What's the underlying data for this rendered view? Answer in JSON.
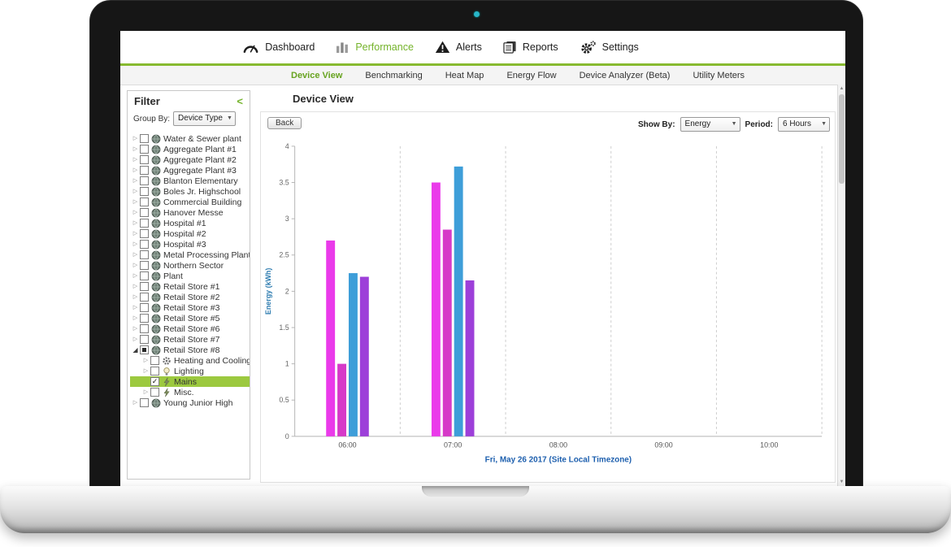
{
  "nav": {
    "accent": "#74b32a",
    "items": [
      {
        "label": "Dashboard",
        "icon": "gauge-icon",
        "active": false
      },
      {
        "label": "Performance",
        "icon": "barchart-icon",
        "active": true
      },
      {
        "label": "Alerts",
        "icon": "alert-icon",
        "active": false
      },
      {
        "label": "Reports",
        "icon": "reports-icon",
        "active": false
      },
      {
        "label": "Settings",
        "icon": "gear-icon",
        "active": false
      }
    ]
  },
  "tabs": {
    "items": [
      {
        "label": "Device View",
        "active": true
      },
      {
        "label": "Benchmarking",
        "active": false
      },
      {
        "label": "Heat Map",
        "active": false
      },
      {
        "label": "Energy Flow",
        "active": false
      },
      {
        "label": "Device Analyzer (Beta)",
        "active": false
      },
      {
        "label": "Utility Meters",
        "active": false
      }
    ]
  },
  "filter": {
    "title": "Filter",
    "collapse_label": "<",
    "group_by_label": "Group By:",
    "group_by_value": "Device Type",
    "tree": [
      {
        "label": "Water & Sewer plant",
        "icon": "globe-icon",
        "expander": "collapsed",
        "checkbox": "unchecked"
      },
      {
        "label": "Aggregate Plant #1",
        "icon": "globe-icon",
        "expander": "collapsed",
        "checkbox": "unchecked"
      },
      {
        "label": "Aggregate Plant #2",
        "icon": "globe-icon",
        "expander": "collapsed",
        "checkbox": "unchecked"
      },
      {
        "label": "Aggregate Plant #3",
        "icon": "globe-icon",
        "expander": "collapsed",
        "checkbox": "unchecked"
      },
      {
        "label": "Blanton Elementary",
        "icon": "globe-icon",
        "expander": "collapsed",
        "checkbox": "unchecked"
      },
      {
        "label": "Boles Jr. Highschool",
        "icon": "globe-icon",
        "expander": "collapsed",
        "checkbox": "unchecked"
      },
      {
        "label": "Commercial Building",
        "icon": "globe-icon",
        "expander": "collapsed",
        "checkbox": "unchecked"
      },
      {
        "label": "Hanover Messe",
        "icon": "globe-icon",
        "expander": "collapsed",
        "checkbox": "unchecked"
      },
      {
        "label": "Hospital #1",
        "icon": "globe-icon",
        "expander": "collapsed",
        "checkbox": "unchecked"
      },
      {
        "label": "Hospital #2",
        "icon": "globe-icon",
        "expander": "collapsed",
        "checkbox": "unchecked"
      },
      {
        "label": "Hospital #3",
        "icon": "globe-icon",
        "expander": "collapsed",
        "checkbox": "unchecked"
      },
      {
        "label": "Metal Processing Plant",
        "icon": "globe-icon",
        "expander": "collapsed",
        "checkbox": "unchecked"
      },
      {
        "label": "Northern Sector",
        "icon": "globe-icon",
        "expander": "collapsed",
        "checkbox": "unchecked"
      },
      {
        "label": "Plant",
        "icon": "globe-icon",
        "expander": "collapsed",
        "checkbox": "unchecked"
      },
      {
        "label": "Retail Store #1",
        "icon": "globe-icon",
        "expander": "collapsed",
        "checkbox": "unchecked"
      },
      {
        "label": "Retail Store #2",
        "icon": "globe-icon",
        "expander": "collapsed",
        "checkbox": "unchecked"
      },
      {
        "label": "Retail Store #3",
        "icon": "globe-icon",
        "expander": "collapsed",
        "checkbox": "unchecked"
      },
      {
        "label": "Retail Store #5",
        "icon": "globe-icon",
        "expander": "collapsed",
        "checkbox": "unchecked"
      },
      {
        "label": "Retail Store #6",
        "icon": "globe-icon",
        "expander": "collapsed",
        "checkbox": "unchecked"
      },
      {
        "label": "Retail Store #7",
        "icon": "globe-icon",
        "expander": "collapsed",
        "checkbox": "unchecked"
      },
      {
        "label": "Retail Store #8",
        "icon": "globe-icon",
        "expander": "expanded",
        "checkbox": "indeterminate",
        "children": [
          {
            "label": "Heating and Cooling",
            "icon": "hvac-icon",
            "expander": "collapsed",
            "checkbox": "unchecked"
          },
          {
            "label": "Lighting",
            "icon": "bulb-icon",
            "expander": "collapsed",
            "checkbox": "unchecked"
          },
          {
            "label": "Mains",
            "icon": "plug-icon",
            "expander": "none",
            "checkbox": "checked",
            "selected": true
          },
          {
            "label": "Misc.",
            "icon": "plug-icon",
            "expander": "collapsed",
            "checkbox": "unchecked"
          }
        ]
      },
      {
        "label": "Young Junior High",
        "icon": "globe-icon",
        "expander": "collapsed",
        "checkbox": "unchecked"
      }
    ]
  },
  "main": {
    "title": "Device View",
    "back_label": "Back",
    "show_by_label": "Show By:",
    "show_by_value": "Energy",
    "period_label": "Period:",
    "period_value": "6 Hours"
  },
  "icons": {
    "dropdown_arrow": "▼",
    "scroll_up": "▲",
    "scroll_down": "▼"
  },
  "chart_data": {
    "type": "bar",
    "title": "",
    "xlabel": "Fri, May 26 2017 (Site Local Timezone)",
    "ylabel": "Energy (kWh)",
    "ylim": [
      0,
      4
    ],
    "ytick_step": 0.5,
    "grid": "vertical-dashed",
    "legend": "none",
    "xlabel_color": "#1d5fae",
    "ylabel_color": "#2e7cb0",
    "categories": [
      "06:00",
      "07:00",
      "08:00",
      "09:00",
      "10:00"
    ],
    "series": [
      {
        "name": "series-1",
        "color": "#ea3aea",
        "values": [
          2.7,
          3.5,
          null,
          null,
          null
        ]
      },
      {
        "name": "series-2",
        "color": "#d639c8",
        "values": [
          1.0,
          2.85,
          null,
          null,
          null
        ]
      },
      {
        "name": "series-3",
        "color": "#3e9ed9",
        "values": [
          2.25,
          3.72,
          null,
          null,
          null
        ]
      },
      {
        "name": "series-4",
        "color": "#9d3fd9",
        "values": [
          2.2,
          2.15,
          null,
          null,
          null
        ]
      }
    ]
  }
}
